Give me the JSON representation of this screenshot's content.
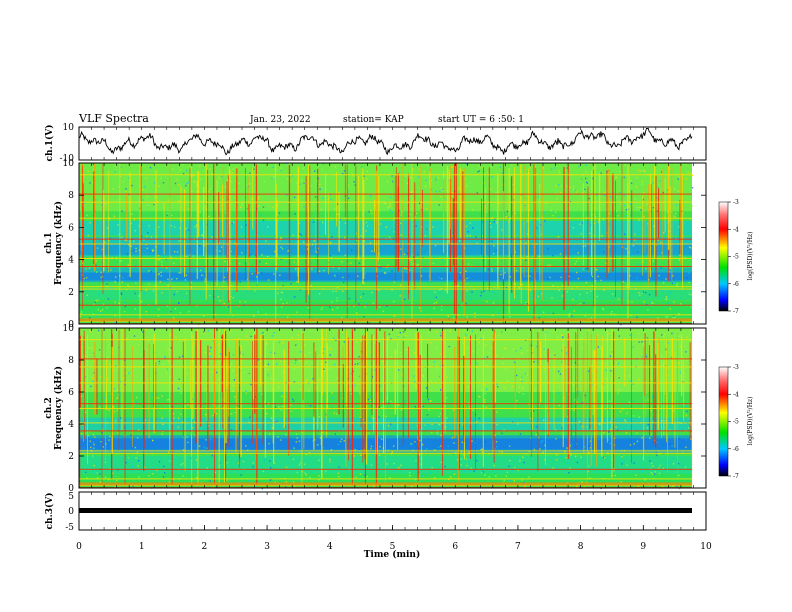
{
  "header": {
    "title": "VLF Spectra",
    "date": "Jan. 23, 2022",
    "station": "station= KAP",
    "start": "start UT = 6 :50: 1"
  },
  "colors": {
    "spectrogram_base": "#3fe04a",
    "spectrogram_low": "#1060ff",
    "spectrogram_high": "#ffe000",
    "spectrogram_peak": "#ff2000",
    "trace": "#000000"
  },
  "chart_data": [
    {
      "type": "line",
      "id": "ch1-waveform",
      "ylabel": "ch.1(V)",
      "ylim": [
        -10,
        10
      ],
      "yticks": [
        "10",
        "-10"
      ],
      "xlim": [
        0,
        10
      ],
      "note_visible": false
    },
    {
      "type": "heatmap",
      "id": "ch1-spectrogram",
      "ylabel_top": "ch.1",
      "ylabel": "Frequency (kHz)",
      "ylim": [
        0,
        10
      ],
      "yticks": [
        "0",
        "2",
        "4",
        "6",
        "8",
        "10"
      ],
      "xlim": [
        0,
        9.8
      ],
      "colorbar": {
        "label": "log(PSD)(V²/Hz)",
        "range": [
          -7,
          -3
        ],
        "ticks": [
          "-3",
          "-4",
          "-5",
          "-6",
          "-7"
        ]
      }
    },
    {
      "type": "heatmap",
      "id": "ch2-spectrogram",
      "ylabel_top": "ch.2",
      "ylabel": "Frequency (kHz)",
      "ylim": [
        0,
        10
      ],
      "yticks": [
        "0",
        "2",
        "4",
        "6",
        "8",
        "10"
      ],
      "xlim": [
        0,
        9.8
      ],
      "colorbar": {
        "label": "log(PSD)(V²/Hz)",
        "range": [
          -7,
          -3
        ],
        "ticks": [
          "-3",
          "-4",
          "-5",
          "-6",
          "-7"
        ]
      }
    },
    {
      "type": "line",
      "id": "ch3-waveform",
      "ylabel": "ch.3(V)",
      "ylim": [
        -5,
        5
      ],
      "yticks": [
        "5",
        "0",
        "-5"
      ],
      "xlim": [
        0,
        10
      ],
      "xlabel": "Time (min)",
      "xticks": [
        "0",
        "1",
        "2",
        "3",
        "4",
        "5",
        "6",
        "7",
        "8",
        "9",
        "10"
      ],
      "level": 0
    }
  ]
}
